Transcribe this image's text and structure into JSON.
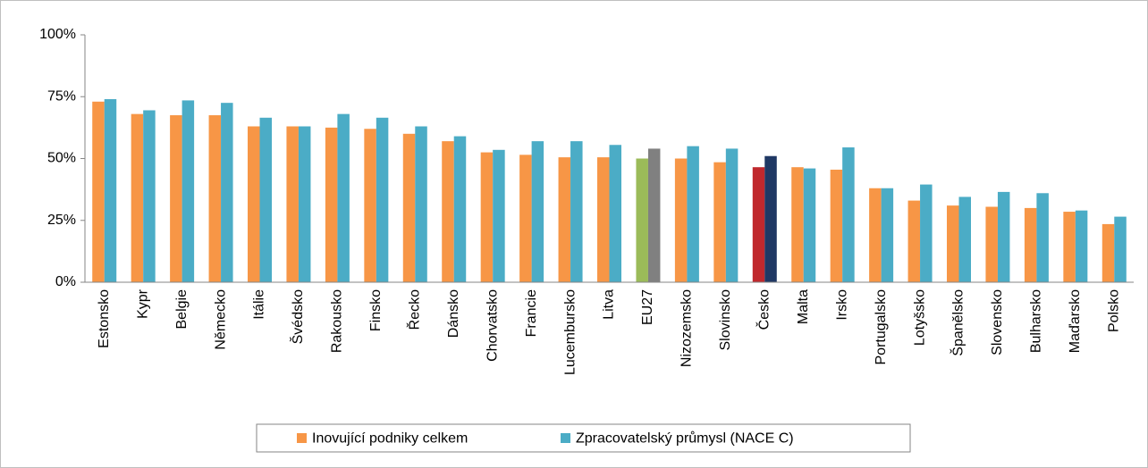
{
  "chart_data": {
    "type": "bar",
    "categories": [
      "Estonsko",
      "Kypr",
      "Belgie",
      "Německo",
      "Itálie",
      "Švédsko",
      "Rakousko",
      "Finsko",
      "Řecko",
      "Dánsko",
      "Chorvatsko",
      "Francie",
      "Lucembursko",
      "Litva",
      "EU27",
      "Nizozemsko",
      "Slovinsko",
      "Česko",
      "Malta",
      "Irsko",
      "Portugalsko",
      "Lotyšsko",
      "Španělsko",
      "Slovensko",
      "Bulharsko",
      "Maďarsko",
      "Polsko"
    ],
    "series": [
      {
        "name": "Inovující podniky celkem",
        "color": "#f79646",
        "values": [
          73,
          68,
          67.5,
          67.5,
          63,
          63,
          62.5,
          62,
          60,
          57,
          52.5,
          51.5,
          50.5,
          50.5,
          50,
          50,
          48.5,
          46.5,
          46.5,
          45.5,
          38,
          33,
          31,
          30.5,
          30,
          28.5,
          23.5
        ],
        "colors": {
          "14": "#9bbb59",
          "17": "#c0282d"
        }
      },
      {
        "name": "Zpracovatelský průmysl (NACE C)",
        "color": "#4bacc6",
        "values": [
          74,
          69.5,
          73.5,
          72.5,
          66.5,
          63,
          68,
          66.5,
          63,
          59,
          53.5,
          57,
          57,
          55.5,
          54,
          55,
          54,
          51,
          46,
          54.5,
          38,
          39.5,
          34.5,
          36.5,
          36,
          29,
          26.5
        ],
        "colors": {
          "14": "#808080",
          "17": "#1f3864"
        }
      }
    ],
    "ylim": [
      0,
      100
    ],
    "yticks": [
      {
        "value": 0,
        "label": "0%"
      },
      {
        "value": 25,
        "label": "25%"
      },
      {
        "value": 50,
        "label": "50%"
      },
      {
        "value": 75,
        "label": "75%"
      },
      {
        "value": 100,
        "label": "100%"
      }
    ],
    "grid": false,
    "legend": "bottom"
  }
}
